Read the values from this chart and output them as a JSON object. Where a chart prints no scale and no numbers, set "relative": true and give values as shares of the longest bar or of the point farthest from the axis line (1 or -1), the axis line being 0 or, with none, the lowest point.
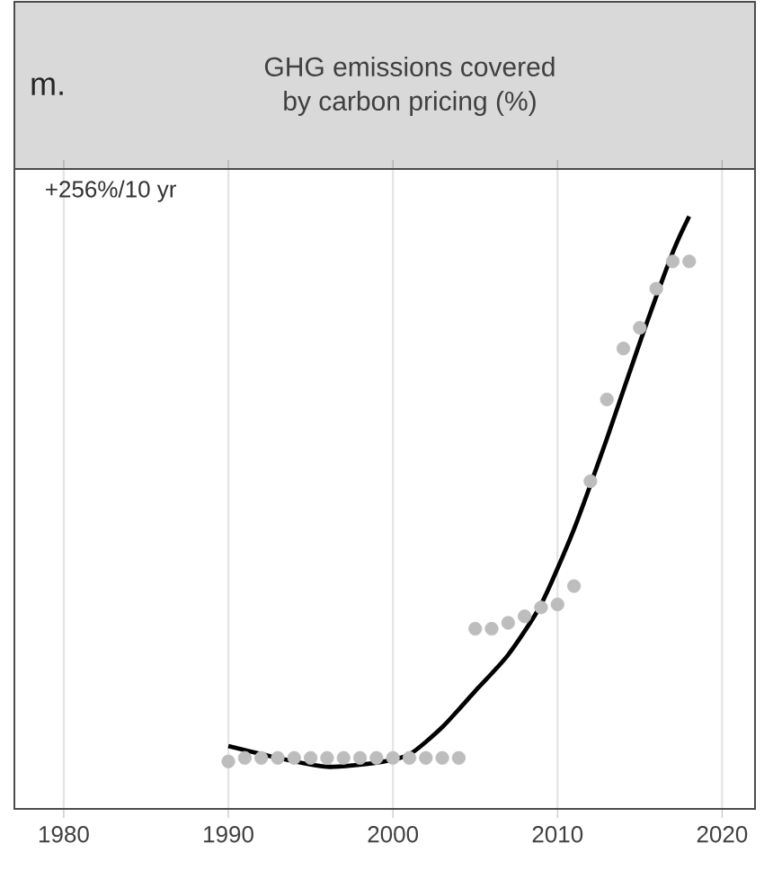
{
  "chart_data": {
    "type": "scatter",
    "title": "GHG emissions covered\nby carbon pricing (%)",
    "relative": true,
    "annotations": [
      "m.",
      "+256%/10 yr"
    ],
    "xlim": [
      1977,
      2022
    ],
    "xticks": [
      1980,
      1990,
      2000,
      2010,
      2020
    ],
    "grid": "x",
    "series": [
      {
        "color": "#bdbdbd",
        "marker": "circle",
        "x": [
          1990,
          1991,
          1992,
          1993,
          1994,
          1995,
          1996,
          1997,
          1998,
          1999,
          2000,
          2001,
          2002,
          2003,
          2004,
          2005,
          2006,
          2007,
          2008,
          2009,
          2010,
          2011,
          2012,
          2013,
          2014,
          2015,
          2016,
          2017,
          2018
        ],
        "values": [
          0.08,
          0.086,
          0.086,
          0.086,
          0.086,
          0.086,
          0.086,
          0.086,
          0.086,
          0.086,
          0.086,
          0.086,
          0.086,
          0.086,
          0.086,
          0.304,
          0.304,
          0.314,
          0.325,
          0.34,
          0.345,
          0.376,
          0.553,
          0.691,
          0.777,
          0.812,
          0.878,
          0.924,
          0.924
        ]
      },
      {
        "type": "line",
        "color": "#000000",
        "marker": "none",
        "x": [
          1990,
          1993,
          1996,
          1999,
          2001,
          2003,
          2005,
          2007,
          2009,
          2011,
          2013,
          2015,
          2017,
          2018
        ],
        "values": [
          0.106,
          0.086,
          0.071,
          0.078,
          0.092,
          0.138,
          0.199,
          0.26,
          0.345,
          0.472,
          0.625,
          0.787,
          0.939,
          1.0
        ]
      }
    ]
  }
}
